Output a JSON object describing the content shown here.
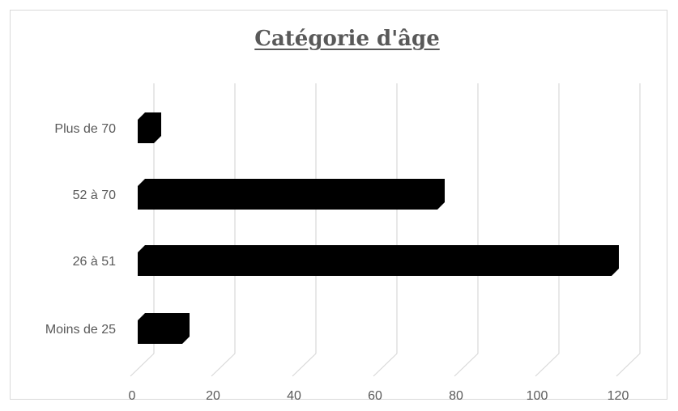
{
  "chart_data": {
    "type": "bar",
    "orientation": "horizontal",
    "title": "Catégorie d'âge",
    "categories": [
      "Plus de 70",
      "52 à 70",
      "26 à 51",
      "Moins de 25"
    ],
    "values": [
      4,
      74,
      117,
      11
    ],
    "xlim": [
      0,
      120
    ],
    "xticks": [
      "0",
      "20",
      "40",
      "60",
      "80",
      "100",
      "120"
    ],
    "grid": true,
    "bar_color": "#000000",
    "grid_color": "#d9d9d9"
  }
}
